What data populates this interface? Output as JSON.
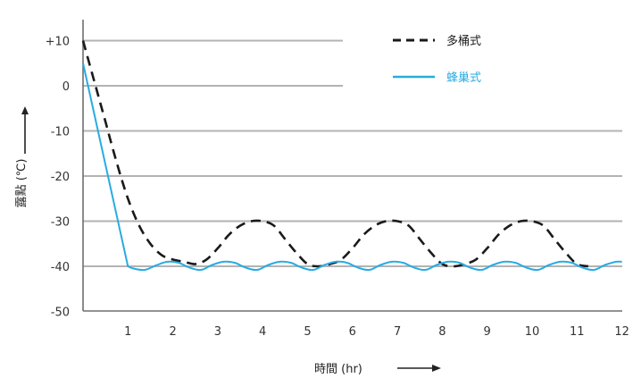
{
  "chart_data": {
    "type": "line",
    "xlabel": "時間 (hr)",
    "ylabel": "露點 (℃)",
    "xlim": [
      0,
      12
    ],
    "ylim": [
      -50,
      15
    ],
    "x_ticks": [
      "1",
      "2",
      "3",
      "4",
      "5",
      "6",
      "7",
      "8",
      "9",
      "10",
      "11",
      "12"
    ],
    "y_ticks": [
      "+10",
      "0",
      "-10",
      "-20",
      "-30",
      "-40",
      "-50"
    ],
    "y_tick_values": [
      10,
      0,
      -10,
      -20,
      -30,
      -40,
      -50
    ],
    "grid": true,
    "legend_position": "top-right",
    "series": [
      {
        "name": "多桶式",
        "style": "dashed",
        "color": "#1a1a1a",
        "x": [
          0,
          0.25,
          0.5,
          0.75,
          1,
          1.25,
          1.5,
          1.75,
          2,
          2.25,
          2.5,
          2.75,
          3,
          3.25,
          3.5,
          3.75,
          4,
          4.25,
          4.5,
          4.75,
          5,
          5.25,
          5.5,
          5.75,
          6,
          6.25,
          6.5,
          6.75,
          7,
          7.25,
          7.5,
          7.75,
          8,
          8.25,
          8.5,
          8.75,
          9,
          9.25,
          9.5,
          9.75,
          10,
          10.25,
          10.5,
          10.75,
          11,
          11.25
        ],
        "y": [
          10,
          1,
          -8,
          -17,
          -25,
          -31,
          -35,
          -37.5,
          -38.5,
          -39,
          -39.5,
          -38.5,
          -36,
          -33,
          -31,
          -30,
          -30,
          -31,
          -34,
          -37,
          -39.5,
          -40,
          -39.5,
          -38.5,
          -36,
          -33,
          -31,
          -30,
          -30,
          -31,
          -34,
          -37,
          -39.5,
          -40,
          -39.5,
          -38.5,
          -36,
          -33,
          -31,
          -30,
          -30,
          -31,
          -34,
          -37,
          -39.5,
          -40
        ]
      },
      {
        "name": "蜂巢式",
        "style": "solid",
        "color": "#29abe2",
        "x": [
          0,
          0.5,
          1,
          1.125,
          1.375,
          1.625,
          1.875,
          2.125,
          2.375,
          2.625,
          2.875,
          3.125,
          3.375,
          3.625,
          3.875,
          4.125,
          4.375,
          4.625,
          4.875,
          5.125,
          5.375,
          5.625,
          5.875,
          6.125,
          6.375,
          6.625,
          6.875,
          7.125,
          7.375,
          7.625,
          7.875,
          8.125,
          8.375,
          8.625,
          8.875,
          9.125,
          9.375,
          9.625,
          9.875,
          10.125,
          10.375,
          10.625,
          10.875,
          11.125,
          11.375,
          11.625,
          11.875,
          12
        ],
        "y": [
          5,
          -17,
          -40,
          -40.5,
          -40.8,
          -39.8,
          -39,
          -39.2,
          -40.3,
          -40.8,
          -39.7,
          -39,
          -39.2,
          -40.3,
          -40.8,
          -39.7,
          -39,
          -39.2,
          -40.3,
          -40.8,
          -39.7,
          -39,
          -39.2,
          -40.3,
          -40.8,
          -39.7,
          -39,
          -39.2,
          -40.3,
          -40.8,
          -39.7,
          -39,
          -39.2,
          -40.3,
          -40.8,
          -39.7,
          -39,
          -39.2,
          -40.3,
          -40.8,
          -39.7,
          -39,
          -39.2,
          -40.3,
          -40.8,
          -39.7,
          -39,
          -39
        ]
      }
    ]
  }
}
